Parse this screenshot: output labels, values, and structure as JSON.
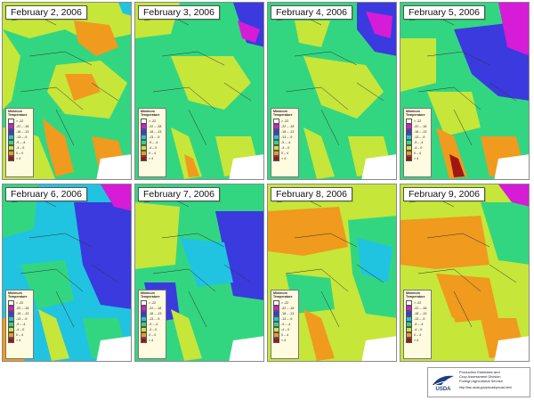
{
  "panels": [
    {
      "date": "February 2, 2006"
    },
    {
      "date": "February 3, 2006"
    },
    {
      "date": "February 4, 2006"
    },
    {
      "date": "February 5, 2006"
    },
    {
      "date": "February 6, 2006"
    },
    {
      "date": "February 7, 2006"
    },
    {
      "date": "February 8, 2006"
    },
    {
      "date": "February 9, 2006"
    }
  ],
  "legend": {
    "title_line1": "Minimum",
    "title_line2": "Temperature",
    "entries": [
      {
        "label": "> -22",
        "color": "#ffffff"
      },
      {
        "label": "-22 – -18",
        "color": "#d61cd6"
      },
      {
        "label": "-18 – -13",
        "color": "#3a3adf"
      },
      {
        "label": "-13 – -9",
        "color": "#20c4e0"
      },
      {
        "label": "-9 – -4",
        "color": "#33d680"
      },
      {
        "label": "-4 – 0",
        "color": "#c6e63a"
      },
      {
        "label": "0 – 4",
        "color": "#f09a1e"
      },
      {
        "label": "> 4",
        "color": "#a01515"
      }
    ]
  },
  "footer": {
    "line1": "Production Estimates and",
    "line2": "Crop Assessment Division",
    "line3": "Foreign Agricultural Service",
    "url": "http://fas.usda.gov/pecad/pecad.html",
    "logo_text": "USDA"
  }
}
